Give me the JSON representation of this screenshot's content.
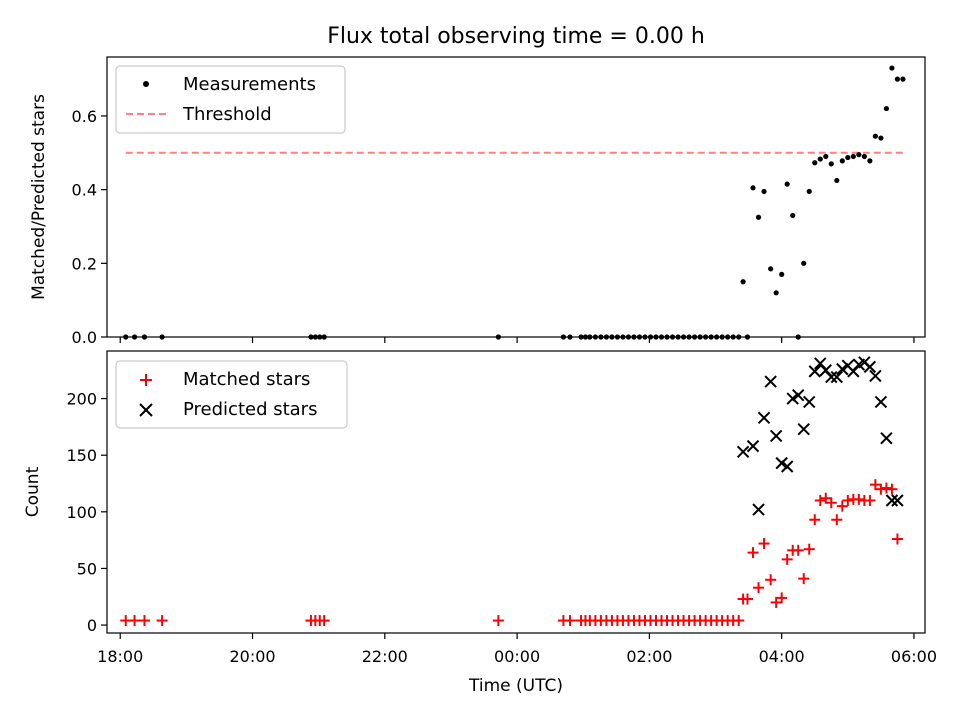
{
  "figure": {
    "title": "Flux total observing time = 0.00 h"
  },
  "colors": {
    "measurements": "#000000",
    "threshold": "#ff8080",
    "matched": "#ff0000",
    "predicted": "#000000"
  },
  "chart_data": [
    {
      "type": "scatter",
      "panel": "top",
      "title": "Flux total observing time = 0.00 h",
      "xlabel": "",
      "ylabel": "Matched/Predicted stars",
      "xlim": [
        "2023-01-01T17:48",
        "2023-01-02T06:10"
      ],
      "ylim": [
        0,
        0.76
      ],
      "yticks": [
        0.0,
        0.2,
        0.4,
        0.6
      ],
      "ytick_labels": [
        "0.0",
        "0.2",
        "0.4",
        "0.6"
      ],
      "grid": false,
      "legend": "top-left",
      "series": [
        {
          "name": "Measurements",
          "marker": "dot",
          "color": "#000000",
          "x": [
            "2023-01-01T18:05",
            "2023-01-01T18:13",
            "2023-01-01T18:22",
            "2023-01-01T18:38",
            "2023-01-01T20:53",
            "2023-01-01T20:57",
            "2023-01-01T21:01",
            "2023-01-01T21:05",
            "2023-01-01T23:43",
            "2023-01-02T00:42",
            "2023-01-02T00:48",
            "2023-01-02T00:58",
            "2023-01-02T01:02",
            "2023-01-02T01:06",
            "2023-01-02T01:11",
            "2023-01-02T01:16",
            "2023-01-02T01:21",
            "2023-01-02T01:26",
            "2023-01-02T01:31",
            "2023-01-02T01:36",
            "2023-01-02T01:41",
            "2023-01-02T01:46",
            "2023-01-02T01:51",
            "2023-01-02T01:56",
            "2023-01-02T02:01",
            "2023-01-02T02:06",
            "2023-01-02T02:11",
            "2023-01-02T02:16",
            "2023-01-02T02:21",
            "2023-01-02T02:26",
            "2023-01-02T02:31",
            "2023-01-02T02:36",
            "2023-01-02T02:41",
            "2023-01-02T02:46",
            "2023-01-02T02:51",
            "2023-01-02T02:56",
            "2023-01-02T03:01",
            "2023-01-02T03:06",
            "2023-01-02T03:11",
            "2023-01-02T03:16",
            "2023-01-02T03:21",
            "2023-01-02T03:25",
            "2023-01-02T03:29",
            "2023-01-02T03:34",
            "2023-01-02T03:39",
            "2023-01-02T03:44",
            "2023-01-02T03:50",
            "2023-01-02T03:55",
            "2023-01-02T04:00",
            "2023-01-02T04:05",
            "2023-01-02T04:10",
            "2023-01-02T04:15",
            "2023-01-02T04:20",
            "2023-01-02T04:25",
            "2023-01-02T04:30",
            "2023-01-02T04:35",
            "2023-01-02T04:40",
            "2023-01-02T04:45",
            "2023-01-02T04:50",
            "2023-01-02T04:55",
            "2023-01-02T05:00",
            "2023-01-02T05:05",
            "2023-01-02T05:10",
            "2023-01-02T05:15",
            "2023-01-02T05:20",
            "2023-01-02T05:25",
            "2023-01-02T05:30",
            "2023-01-02T05:35",
            "2023-01-02T05:40",
            "2023-01-02T05:45",
            "2023-01-02T05:50"
          ],
          "y": [
            0,
            0,
            0,
            0,
            0,
            0,
            0,
            0,
            0,
            0,
            0,
            0,
            0,
            0,
            0,
            0,
            0,
            0,
            0,
            0,
            0,
            0,
            0,
            0,
            0,
            0,
            0,
            0,
            0,
            0,
            0,
            0,
            0,
            0,
            0,
            0,
            0,
            0,
            0,
            0,
            0,
            0.15,
            0,
            0.405,
            0.325,
            0.395,
            0.185,
            0.12,
            0.17,
            0.415,
            0.33,
            0,
            0.2,
            0.395,
            0.473,
            0.483,
            0.49,
            0.47,
            0.425,
            0.478,
            0.487,
            0.49,
            0.495,
            0.49,
            0.478,
            0.545,
            0.54,
            0.62,
            0.73,
            0.7,
            0.7
          ]
        },
        {
          "name": "Threshold",
          "style": "dashed",
          "color": "#ff8080",
          "x": [
            "2023-01-01T18:05",
            "2023-01-02T05:50"
          ],
          "y": [
            0.5,
            0.5
          ]
        }
      ]
    },
    {
      "type": "scatter",
      "panel": "bottom",
      "xlabel": "Time (UTC)",
      "ylabel": "Count",
      "xlim": [
        "2023-01-01T17:48",
        "2023-01-02T06:10"
      ],
      "xticks": [
        "2023-01-01T18:00",
        "2023-01-01T20:00",
        "2023-01-01T22:00",
        "2023-01-02T00:00",
        "2023-01-02T02:00",
        "2023-01-02T04:00",
        "2023-01-02T06:00"
      ],
      "xtick_labels": [
        "18:00",
        "20:00",
        "22:00",
        "00:00",
        "02:00",
        "04:00",
        "06:00"
      ],
      "ylim": [
        -7,
        242
      ],
      "yticks": [
        0,
        50,
        100,
        150,
        200
      ],
      "ytick_labels": [
        "0",
        "50",
        "100",
        "150",
        "200"
      ],
      "grid": false,
      "legend": "top-left",
      "series": [
        {
          "name": "Matched stars",
          "marker": "plus",
          "color": "#ff0000",
          "x": [
            "2023-01-01T18:05",
            "2023-01-01T18:13",
            "2023-01-01T18:22",
            "2023-01-01T18:38",
            "2023-01-01T20:53",
            "2023-01-01T20:57",
            "2023-01-01T21:01",
            "2023-01-01T21:05",
            "2023-01-01T23:43",
            "2023-01-02T00:42",
            "2023-01-02T00:48",
            "2023-01-02T00:58",
            "2023-01-02T01:02",
            "2023-01-02T01:06",
            "2023-01-02T01:11",
            "2023-01-02T01:16",
            "2023-01-02T01:21",
            "2023-01-02T01:26",
            "2023-01-02T01:31",
            "2023-01-02T01:36",
            "2023-01-02T01:41",
            "2023-01-02T01:46",
            "2023-01-02T01:51",
            "2023-01-02T01:56",
            "2023-01-02T02:01",
            "2023-01-02T02:06",
            "2023-01-02T02:11",
            "2023-01-02T02:16",
            "2023-01-02T02:21",
            "2023-01-02T02:26",
            "2023-01-02T02:31",
            "2023-01-02T02:36",
            "2023-01-02T02:41",
            "2023-01-02T02:46",
            "2023-01-02T02:51",
            "2023-01-02T02:56",
            "2023-01-02T03:01",
            "2023-01-02T03:06",
            "2023-01-02T03:11",
            "2023-01-02T03:16",
            "2023-01-02T03:21",
            "2023-01-02T03:25",
            "2023-01-02T03:29",
            "2023-01-02T03:34",
            "2023-01-02T03:39",
            "2023-01-02T03:44",
            "2023-01-02T03:50",
            "2023-01-02T03:55",
            "2023-01-02T04:00",
            "2023-01-02T04:05",
            "2023-01-02T04:10",
            "2023-01-02T04:15",
            "2023-01-02T04:20",
            "2023-01-02T04:25",
            "2023-01-02T04:30",
            "2023-01-02T04:35",
            "2023-01-02T04:40",
            "2023-01-02T04:45",
            "2023-01-02T04:50",
            "2023-01-02T04:55",
            "2023-01-02T05:00",
            "2023-01-02T05:05",
            "2023-01-02T05:10",
            "2023-01-02T05:15",
            "2023-01-02T05:20",
            "2023-01-02T05:25",
            "2023-01-02T05:30",
            "2023-01-02T05:35",
            "2023-01-02T05:40",
            "2023-01-02T05:45"
          ],
          "y": [
            4,
            4,
            4,
            4,
            4,
            4,
            4,
            4,
            4,
            4,
            4,
            4,
            4,
            4,
            4,
            4,
            4,
            4,
            4,
            4,
            4,
            4,
            4,
            4,
            4,
            4,
            4,
            4,
            4,
            4,
            4,
            4,
            4,
            4,
            4,
            4,
            4,
            4,
            4,
            4,
            4,
            23,
            23,
            64,
            33,
            72,
            40,
            20,
            24,
            58,
            66,
            66,
            41,
            67,
            93,
            110,
            112,
            108,
            93,
            105,
            110,
            111,
            111,
            110,
            110,
            124,
            120,
            121,
            120,
            76
          ]
        },
        {
          "name": "Predicted stars",
          "marker": "x",
          "color": "#000000",
          "x": [
            "2023-01-02T03:25",
            "2023-01-02T03:34",
            "2023-01-02T03:39",
            "2023-01-02T03:44",
            "2023-01-02T03:50",
            "2023-01-02T03:55",
            "2023-01-02T04:00",
            "2023-01-02T04:05",
            "2023-01-02T04:10",
            "2023-01-02T04:15",
            "2023-01-02T04:20",
            "2023-01-02T04:25",
            "2023-01-02T04:30",
            "2023-01-02T04:35",
            "2023-01-02T04:40",
            "2023-01-02T04:45",
            "2023-01-02T04:50",
            "2023-01-02T04:55",
            "2023-01-02T05:00",
            "2023-01-02T05:05",
            "2023-01-02T05:10",
            "2023-01-02T05:15",
            "2023-01-02T05:20",
            "2023-01-02T05:25",
            "2023-01-02T05:30",
            "2023-01-02T05:35",
            "2023-01-02T05:40",
            "2023-01-02T05:45"
          ],
          "y": [
            153,
            158,
            102,
            183,
            215,
            167,
            143,
            140,
            200,
            203,
            173,
            197,
            224,
            231,
            225,
            219,
            219,
            226,
            229,
            224,
            230,
            232,
            228,
            220,
            197,
            165,
            110,
            110
          ]
        }
      ]
    }
  ]
}
